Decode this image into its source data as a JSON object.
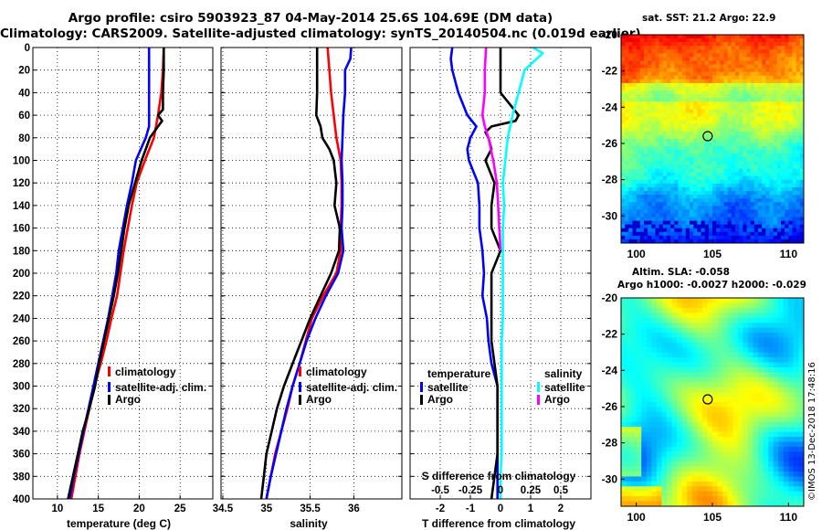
{
  "header": {
    "title_line1": "Argo profile: csiro 5903923_87 04-May-2014 25.6S 104.69E (DM data)",
    "title_line2": "Climatology: CARS2009. Satellite-adjusted climatology: synTS_20140504.nc (0.019d earlier)"
  },
  "colors": {
    "climatology": "#ff0000",
    "satellite": "#0000ff",
    "argo": "#000000",
    "sat_salinity": "#00ffff",
    "argo_salinity": "#ff00ff"
  },
  "depth_ticks": [
    "0",
    "20",
    "40",
    "60",
    "80",
    "100",
    "120",
    "140",
    "160",
    "180",
    "200",
    "220",
    "240",
    "260",
    "280",
    "300",
    "320",
    "340",
    "360",
    "380",
    "400"
  ],
  "chart_data": [
    {
      "type": "line",
      "id": "temperature",
      "xlabel": "temperature (deg C)",
      "ylabel": "depth",
      "xlim": [
        7,
        29
      ],
      "ylim": [
        400,
        0
      ],
      "xticks": [
        10,
        15,
        20,
        25
      ],
      "xtick_labels": [
        "10",
        "15",
        "20",
        "25"
      ],
      "legend": [
        "climatology",
        "satellite-adj. clim.",
        "Argo"
      ],
      "series": [
        {
          "name": "climatology",
          "color": "#ff0000",
          "depth": [
            0,
            20,
            40,
            60,
            80,
            100,
            120,
            140,
            160,
            180,
            200,
            220,
            240,
            260,
            280,
            300,
            320,
            340,
            360,
            380,
            400
          ],
          "values": [
            23,
            22.9,
            22.7,
            22.3,
            21.8,
            20.7,
            19.7,
            19.1,
            18.6,
            18.1,
            17.7,
            17.3,
            16.6,
            16,
            15.3,
            14.5,
            13.9,
            13.3,
            12.7,
            12.2,
            11.7
          ]
        },
        {
          "name": "satellite-adj. clim.",
          "color": "#0000ff",
          "depth": [
            0,
            20,
            40,
            60,
            70,
            80,
            100,
            120,
            140,
            160,
            180,
            200,
            220,
            240,
            260,
            280,
            300,
            320,
            340,
            360,
            380,
            400
          ],
          "values": [
            21.2,
            21.2,
            21.2,
            21.2,
            21.2,
            20.8,
            19.6,
            19.1,
            18.5,
            18,
            17.5,
            17.2,
            16.7,
            16.2,
            15.6,
            15,
            14.4,
            13.8,
            13.2,
            12.6,
            12,
            11.5
          ]
        },
        {
          "name": "Argo",
          "color": "#000000",
          "depth": [
            0,
            10,
            20,
            40,
            55,
            60,
            65,
            70,
            80,
            90,
            100,
            120,
            140,
            160,
            180,
            200,
            220,
            240,
            260,
            280,
            300,
            320,
            340,
            360,
            380,
            400
          ],
          "values": [
            23,
            23,
            23,
            22.9,
            22.9,
            22.3,
            22.8,
            22.3,
            21.3,
            20.8,
            20.3,
            19.5,
            18.7,
            18.2,
            17.8,
            17.4,
            16.9,
            16.3,
            15.7,
            15.1,
            14.6,
            13.9,
            13.1,
            12.5,
            11.9,
            11.3
          ]
        }
      ]
    },
    {
      "type": "line",
      "id": "salinity",
      "xlabel": "salinity",
      "ylabel": "depth",
      "xlim": [
        34.48,
        36.55
      ],
      "ylim": [
        400,
        0
      ],
      "xticks": [
        34.5,
        35,
        35.5,
        36
      ],
      "xtick_labels": [
        "34.5",
        "35",
        "35.5",
        "36"
      ],
      "legend": [
        "climatology",
        "satellite-adj. clim.",
        "Argo"
      ],
      "series": [
        {
          "name": "climatology",
          "color": "#ff0000",
          "depth": [
            0,
            20,
            40,
            60,
            80,
            100,
            120,
            140,
            160,
            180,
            200,
            220,
            240,
            260,
            280,
            300,
            320,
            340,
            360,
            380,
            400
          ],
          "values": [
            35.7,
            35.72,
            35.74,
            35.77,
            35.8,
            35.85,
            35.86,
            35.86,
            35.85,
            35.85,
            35.8,
            35.65,
            35.52,
            35.45,
            35.38,
            35.3,
            35.24,
            35.17,
            35.1,
            35.05,
            35
          ]
        },
        {
          "name": "satellite-adj. clim.",
          "color": "#0000ff",
          "depth": [
            0,
            10,
            20,
            40,
            60,
            80,
            100,
            120,
            140,
            160,
            180,
            200,
            220,
            240,
            260,
            280,
            300,
            320,
            340,
            360,
            380,
            400
          ],
          "values": [
            35.97,
            35.96,
            35.9,
            35.9,
            35.88,
            35.87,
            35.86,
            35.87,
            35.87,
            35.86,
            35.88,
            35.82,
            35.68,
            35.56,
            35.46,
            35.38,
            35.3,
            35.23,
            35.17,
            35.11,
            35.05,
            35
          ]
        },
        {
          "name": "Argo",
          "color": "#000000",
          "depth": [
            0,
            20,
            40,
            60,
            70,
            80,
            90,
            100,
            120,
            140,
            160,
            180,
            200,
            220,
            240,
            260,
            280,
            300,
            320,
            340,
            360,
            380,
            400
          ],
          "values": [
            35.58,
            35.58,
            35.58,
            35.57,
            35.62,
            35.64,
            35.72,
            35.77,
            35.8,
            35.78,
            35.84,
            35.83,
            35.74,
            35.62,
            35.5,
            35.4,
            35.3,
            35.2,
            35.12,
            35.06,
            35,
            34.97,
            34.94
          ]
        }
      ]
    },
    {
      "type": "line",
      "id": "difference",
      "xlabel": "T difference from climatology",
      "ylabel": "depth",
      "xlim": [
        -3,
        3
      ],
      "ylim": [
        400,
        0
      ],
      "xticks": [
        -2,
        -1,
        0,
        1,
        2
      ],
      "xtick_labels": [
        "-2",
        "-1",
        "0",
        "1",
        "2"
      ],
      "top_axis": {
        "label": "S difference from climatology",
        "ticks": [
          "-0.5",
          "-0.25",
          "0",
          "0.25",
          "0.5"
        ]
      },
      "legend": {
        "temperature": [
          "satellite",
          "Argo"
        ],
        "salinity": [
          "satellite",
          "Argo"
        ]
      },
      "legend_headers": [
        "temperature",
        "salinity"
      ],
      "series": [
        {
          "name": "temperature satellite",
          "color": "#0000ff",
          "depth": [
            0,
            10,
            20,
            40,
            60,
            70,
            80,
            90,
            100,
            120,
            140,
            160,
            180,
            200,
            220,
            240,
            260,
            280,
            300,
            320,
            340,
            360,
            380,
            400
          ],
          "values": [
            -1.6,
            -1.65,
            -1.6,
            -1.4,
            -1.1,
            -0.8,
            -1,
            -1.1,
            -1.05,
            -0.75,
            -0.7,
            -0.7,
            -0.6,
            -0.55,
            -0.6,
            -0.45,
            -0.4,
            -0.3,
            -0.1,
            -0.1,
            -0.1,
            -0.1,
            -0.1,
            -0.1
          ]
        },
        {
          "name": "temperature Argo",
          "color": "#000000",
          "depth": [
            0,
            40,
            60,
            65,
            70,
            75,
            80,
            90,
            100,
            120,
            140,
            160,
            180,
            200,
            220,
            240,
            260,
            280,
            300,
            320,
            340,
            360,
            380,
            400
          ],
          "values": [
            0,
            0,
            0.6,
            0.5,
            -0.3,
            -0.5,
            -0.4,
            -0.3,
            -0.5,
            -0.2,
            -0.3,
            -0.3,
            0,
            -0.3,
            -0.3,
            -0.3,
            -0.3,
            -0.2,
            -0.1,
            -0.1,
            -0.1,
            -0.1,
            -0.2,
            -0.3
          ]
        },
        {
          "name": "salinity satellite",
          "color": "#00ffff",
          "depth": [
            0,
            5,
            20,
            40,
            60,
            80,
            100,
            120,
            140,
            160,
            180,
            200,
            220,
            240,
            260,
            280,
            300,
            320,
            340,
            360,
            380,
            400
          ],
          "values": [
            0.27,
            0.35,
            0.2,
            0.15,
            0.1,
            0.06,
            0.04,
            0.02,
            0.03,
            0.02,
            0.02,
            0.02,
            0.02,
            0.02,
            0.01,
            0.01,
            0.01,
            0.01,
            0.01,
            0.01,
            0,
            0
          ]
        },
        {
          "name": "salinity Argo",
          "color": "#ff00ff",
          "depth": [
            0,
            20,
            40,
            60,
            70,
            80,
            100,
            120,
            140,
            160,
            180
          ],
          "values": [
            -0.12,
            -0.13,
            -0.13,
            -0.15,
            -0.13,
            -0.1,
            -0.06,
            -0.03,
            -0.02,
            -0.01,
            0
          ]
        }
      ]
    }
  ],
  "map_sst": {
    "title": "sat. SST: 21.2  Argo: 22.9",
    "xticks": [
      "100",
      "105",
      "110"
    ],
    "yticks": [
      "-20",
      "-22",
      "-24",
      "-26",
      "-28",
      "-30"
    ],
    "lon_range": [
      99,
      111
    ],
    "lat_range": [
      -31.5,
      -20
    ],
    "marker": {
      "lon": 104.69,
      "lat": -25.6
    }
  },
  "map_sla": {
    "title_line1": "Altim. SLA: -0.058",
    "title_line2": "Argo h1000: -0.0027 h2000: -0.029",
    "xticks": [
      "100",
      "105",
      "110"
    ],
    "yticks": [
      "-20",
      "-22",
      "-24",
      "-26",
      "-28",
      "-30"
    ],
    "lon_range": [
      99,
      111
    ],
    "lat_range": [
      -31.5,
      -20
    ],
    "marker": {
      "lon": 104.69,
      "lat": -25.6
    }
  },
  "credit": "©IMOS 13-Dec-2018 17:48:16"
}
